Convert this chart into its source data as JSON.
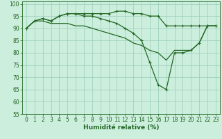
{
  "xlabel": "Humidité relative (%)",
  "bg_color": "#cceedd",
  "grid_color": "#99ccbb",
  "line_color": "#226622",
  "ylim": [
    55,
    101
  ],
  "xlim": [
    -0.5,
    23.5
  ],
  "yticks": [
    55,
    60,
    65,
    70,
    75,
    80,
    85,
    90,
    95,
    100
  ],
  "xticks": [
    0,
    1,
    2,
    3,
    4,
    5,
    6,
    7,
    8,
    9,
    10,
    11,
    12,
    13,
    14,
    15,
    16,
    17,
    18,
    19,
    20,
    21,
    22,
    23
  ],
  "line1_y": [
    90,
    93,
    94,
    93,
    95,
    96,
    96,
    96,
    96,
    96,
    96,
    97,
    97,
    96,
    96,
    95,
    95,
    91,
    91,
    91,
    91,
    91,
    91,
    91
  ],
  "line2_y": [
    90,
    93,
    94,
    93,
    95,
    96,
    96,
    95,
    95,
    94,
    93,
    92,
    90,
    88,
    85,
    76,
    67,
    65,
    80,
    80,
    81,
    84,
    91,
    91
  ],
  "line3_y": [
    90,
    93,
    93,
    92,
    92,
    92,
    91,
    91,
    90,
    89,
    88,
    87,
    86,
    84,
    83,
    81,
    80,
    77,
    81,
    81,
    81,
    84,
    91,
    91
  ],
  "tick_fontsize": 5.5,
  "xlabel_fontsize": 6.5,
  "linewidth": 0.9,
  "markersize": 3.0
}
